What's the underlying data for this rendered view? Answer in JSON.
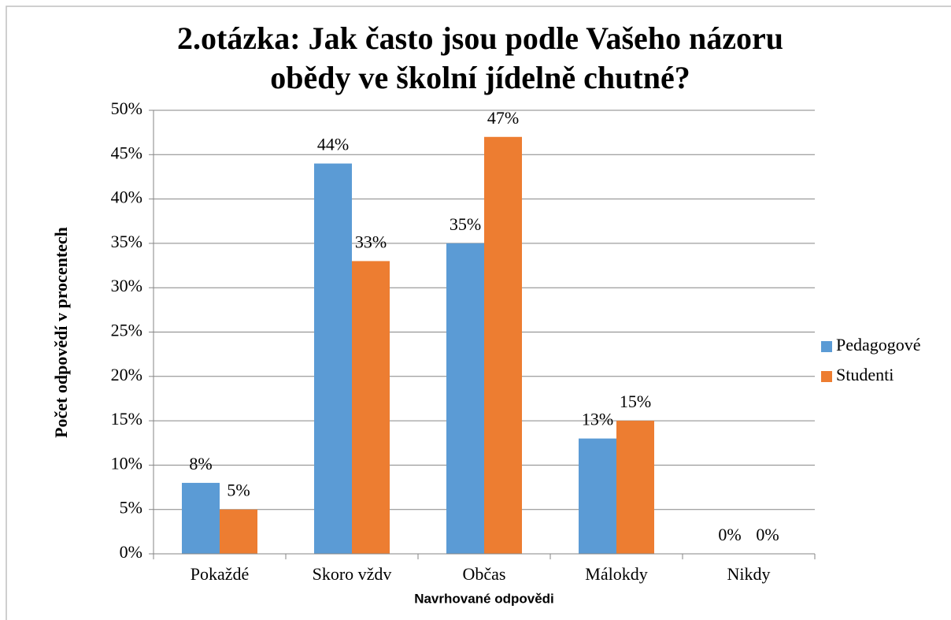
{
  "chart_data": {
    "type": "bar",
    "title": [
      "2.otázka:  Jak často jsou podle Vašeho názoru",
      "obědy ve školní jídelně chutné?"
    ],
    "x_label": "Navrhované odpovědi",
    "y_label": "Počet odpovědí v procentech",
    "categories": [
      "Pokaždé",
      "Skoro vždv",
      "Občas",
      "Málokdy",
      "Nikdy"
    ],
    "series": [
      {
        "name": "Pedagogové",
        "color": "#5b9bd5",
        "values": [
          8,
          44,
          35,
          13,
          0
        ],
        "value_labels": [
          "8%",
          "44%",
          "35%",
          "13%",
          "0%"
        ]
      },
      {
        "name": "Studenti",
        "color": "#ed7d31",
        "values": [
          5,
          33,
          47,
          15,
          0
        ],
        "value_labels": [
          "5%",
          "33%",
          "47%",
          "15%",
          "0%"
        ]
      }
    ],
    "ylim": [
      0,
      50
    ],
    "yticks": [
      {
        "value": 0,
        "label": "0%"
      },
      {
        "value": 5,
        "label": "5%"
      },
      {
        "value": 10,
        "label": "10%"
      },
      {
        "value": 15,
        "label": "15%"
      },
      {
        "value": 20,
        "label": "20%"
      },
      {
        "value": 25,
        "label": "25%"
      },
      {
        "value": 30,
        "label": "30%"
      },
      {
        "value": 35,
        "label": "35%"
      },
      {
        "value": 40,
        "label": "40%"
      },
      {
        "value": 45,
        "label": "45%"
      },
      {
        "value": 50,
        "label": "50%"
      }
    ],
    "grid": true,
    "legend": "right"
  }
}
